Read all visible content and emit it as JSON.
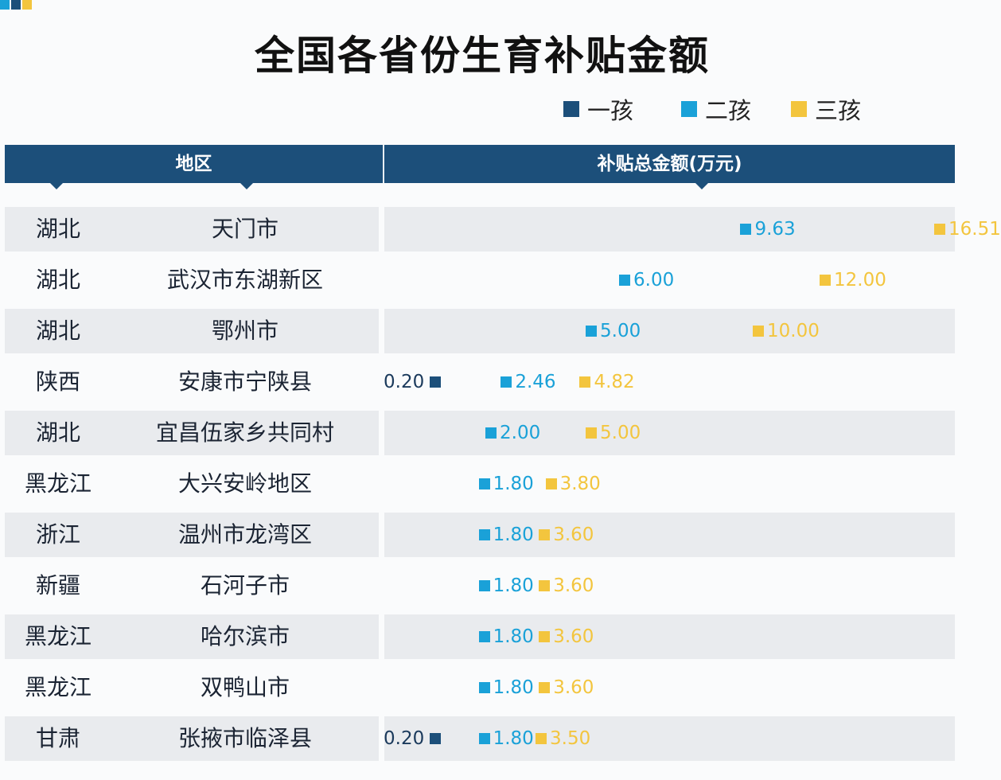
{
  "title": "全国各省份生育补贴金额",
  "colors": {
    "first_child": "#1c4f7a",
    "second_child": "#1aa1d8",
    "third_child": "#f3c53e",
    "header_bg": "#1c4f7a",
    "row_stripe": "#e9ebee"
  },
  "legend": [
    {
      "label": "一孩",
      "color_key": "first_child"
    },
    {
      "label": "二孩",
      "color_key": "second_child"
    },
    {
      "label": "三孩",
      "color_key": "third_child"
    }
  ],
  "table": {
    "col_region": "地区",
    "col_amount": "补贴总金额(万元)"
  },
  "chart_data": {
    "type": "table",
    "title": "全国各省份生育补贴金额",
    "value_header": "补贴总金额(万元)",
    "series": [
      {
        "name": "一孩",
        "values": [
          null,
          null,
          null,
          "0.20",
          null,
          null,
          null,
          null,
          null,
          null,
          "0.20"
        ]
      },
      {
        "name": "二孩",
        "values": [
          "9.63",
          "6.00",
          "5.00",
          "2.46",
          "2.00",
          "1.80",
          "1.80",
          "1.80",
          "1.80",
          "1.80",
          "1.80"
        ]
      },
      {
        "name": "三孩",
        "values": [
          "16.51",
          "12.00",
          "10.00",
          "4.82",
          "5.00",
          "3.80",
          "3.60",
          "3.60",
          "3.60",
          "3.60",
          "3.50"
        ]
      }
    ],
    "rows": [
      {
        "province": "湖北",
        "city": "天门市"
      },
      {
        "province": "湖北",
        "city": "武汉市东湖新区"
      },
      {
        "province": "湖北",
        "city": "鄂州市"
      },
      {
        "province": "陕西",
        "city": "安康市宁陕县"
      },
      {
        "province": "湖北",
        "city": "宜昌伍家乡共同村"
      },
      {
        "province": "黑龙江",
        "city": "大兴安岭地区"
      },
      {
        "province": "浙江",
        "city": "温州市龙湾区"
      },
      {
        "province": "新疆",
        "city": "石河子市"
      },
      {
        "province": "黑龙江",
        "city": "哈尔滨市"
      },
      {
        "province": "黑龙江",
        "city": "双鸭山市"
      },
      {
        "province": "甘肃",
        "city": "张掖市临泽县"
      }
    ]
  }
}
